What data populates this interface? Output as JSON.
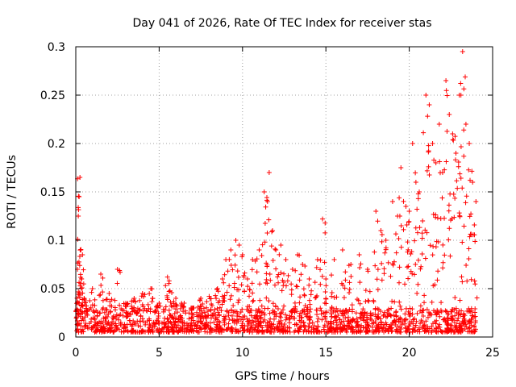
{
  "chart_data": {
    "type": "scatter",
    "title": "Day 041 of 2026, Rate Of TEC Index for receiver stas",
    "xlabel": "GPS time / hours",
    "ylabel": "ROTI / TECUs",
    "xlim": [
      0,
      25
    ],
    "ylim": [
      0,
      0.3
    ],
    "x_ticks": [
      0,
      5,
      10,
      15,
      20,
      25
    ],
    "x_tick_labels": [
      "0",
      "5",
      "10",
      "15",
      "20",
      "25"
    ],
    "y_ticks": [
      0,
      0.05,
      0.1,
      0.15,
      0.2,
      0.25,
      0.3
    ],
    "y_tick_labels": [
      "0",
      "0.05",
      "0.1",
      "0.15",
      "0.2",
      "0.25",
      "0.3"
    ],
    "grid": true,
    "marker": "plus",
    "color": "#ff0000",
    "series": [
      {
        "name": "ROTI",
        "x": [
          0.1,
          0.2,
          0.25,
          0.3,
          0.35,
          0.4,
          0.15,
          0.5,
          1.0,
          1.5,
          2.0,
          2.5,
          3.0,
          3.5,
          4.0,
          4.5,
          5.0,
          5.5,
          5.6,
          6.0,
          6.5,
          7.0,
          7.5,
          8.0,
          8.5,
          8.8,
          9.0,
          9.3,
          9.6,
          9.8,
          10.0,
          10.3,
          10.6,
          11.0,
          11.3,
          11.5,
          11.6,
          11.8,
          12.0,
          12.3,
          12.6,
          13.0,
          13.3,
          13.6,
          14.0,
          14.5,
          14.8,
          15.0,
          15.5,
          16.0,
          16.5,
          17.0,
          17.5,
          18.0,
          18.3,
          18.6,
          19.0,
          19.3,
          19.5,
          19.8,
          20.0,
          20.2,
          20.4,
          20.6,
          20.8,
          21.0,
          21.2,
          21.4,
          21.6,
          21.8,
          22.0,
          22.2,
          22.4,
          22.6,
          22.8,
          23.0,
          23.1,
          23.2,
          23.4,
          23.6,
          23.8,
          24.0
        ],
        "y": [
          0.07,
          0.145,
          0.165,
          0.09,
          0.06,
          0.085,
          0.125,
          0.04,
          0.05,
          0.065,
          0.045,
          0.07,
          0.035,
          0.04,
          0.045,
          0.05,
          0.035,
          0.062,
          0.058,
          0.04,
          0.035,
          0.03,
          0.04,
          0.042,
          0.05,
          0.06,
          0.08,
          0.09,
          0.1,
          0.095,
          0.085,
          0.06,
          0.08,
          0.09,
          0.15,
          0.14,
          0.17,
          0.11,
          0.09,
          0.095,
          0.08,
          0.07,
          0.085,
          0.075,
          0.06,
          0.08,
          0.122,
          0.06,
          0.08,
          0.09,
          0.075,
          0.085,
          0.07,
          0.13,
          0.11,
          0.1,
          0.14,
          0.125,
          0.175,
          0.135,
          0.13,
          0.2,
          0.16,
          0.15,
          0.12,
          0.25,
          0.24,
          0.2,
          0.18,
          0.22,
          0.17,
          0.265,
          0.23,
          0.21,
          0.19,
          0.25,
          0.25,
          0.295,
          0.22,
          0.2,
          0.16,
          0.14
        ]
      }
    ],
    "baseline_band": {
      "x_range": [
        0,
        24
      ],
      "y_range": [
        0.005,
        0.03
      ]
    }
  }
}
